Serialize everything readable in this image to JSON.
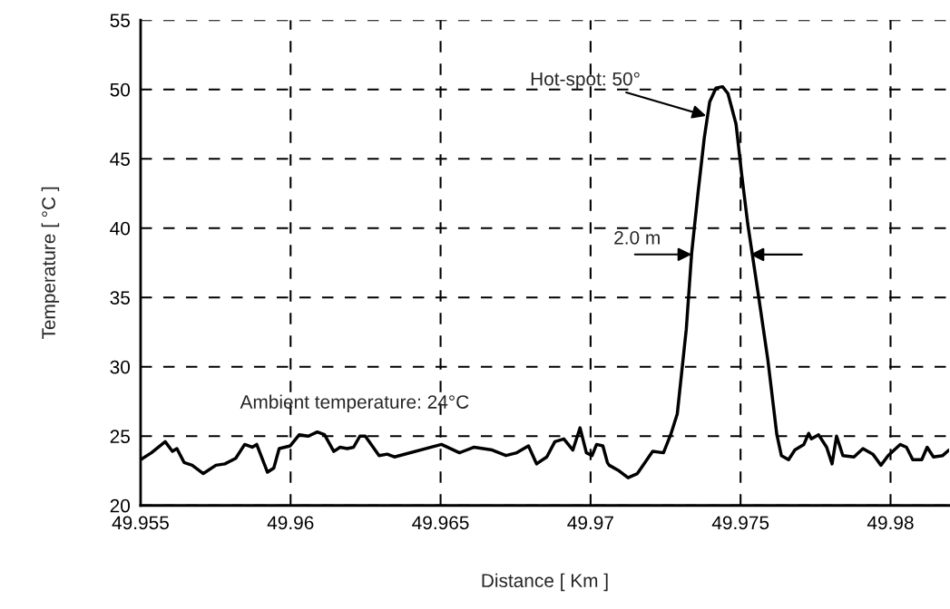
{
  "chart_data": {
    "type": "line",
    "xlabel": "Distance [ Km ]",
    "ylabel": "Temperature [ °C ]",
    "x": [
      49.955,
      49.95536,
      49.95582,
      49.95606,
      49.95621,
      49.95645,
      49.95672,
      49.95709,
      49.95751,
      49.95781,
      49.95817,
      49.95847,
      49.95872,
      49.95887,
      49.95923,
      49.95944,
      49.95962,
      49.95999,
      49.96029,
      49.96059,
      49.96089,
      49.96113,
      49.96144,
      49.96165,
      49.96189,
      49.9621,
      49.96231,
      49.96249,
      49.96295,
      49.96322,
      49.96346,
      49.96503,
      49.96563,
      49.96612,
      49.96672,
      49.96718,
      49.96754,
      49.96793,
      49.9682,
      49.96854,
      49.96881,
      49.96911,
      49.96941,
      49.96965,
      49.96986,
      49.97005,
      49.9702,
      49.97041,
      49.97056,
      49.97062,
      49.97095,
      49.97125,
      49.97156,
      49.97207,
      49.97243,
      49.97267,
      49.97289,
      49.97319,
      49.97337,
      49.97358,
      49.97379,
      49.97397,
      49.97418,
      49.9744,
      49.97458,
      49.97485,
      49.97503,
      49.97524,
      49.9756,
      49.97591,
      49.97621,
      49.97636,
      49.9766,
      49.97681,
      49.97711,
      49.97727,
      49.97736,
      49.9776,
      49.97787,
      49.97805,
      49.9782,
      49.97841,
      49.97878,
      49.97908,
      49.97941,
      49.97968,
      49.97992,
      49.98032,
      49.98053,
      49.98074,
      49.98104,
      49.98122,
      49.98143,
      49.98174,
      49.98195
    ],
    "series": [
      {
        "color": "#000000",
        "values": [
          23.3,
          23.8,
          24.6,
          23.9,
          24.1,
          23.1,
          22.9,
          22.3,
          22.9,
          23.0,
          23.4,
          24.4,
          24.2,
          24.4,
          22.4,
          22.7,
          24.1,
          24.3,
          25.1,
          25.0,
          25.3,
          25.1,
          23.9,
          24.2,
          24.1,
          24.2,
          25.0,
          25.0,
          23.6,
          23.7,
          23.5,
          24.4,
          23.8,
          24.2,
          24.0,
          23.6,
          23.8,
          24.3,
          23.0,
          23.5,
          24.6,
          24.8,
          24.0,
          25.6,
          23.8,
          23.6,
          24.4,
          24.3,
          23.1,
          22.9,
          22.5,
          22.0,
          22.3,
          23.9,
          23.8,
          25.1,
          26.6,
          32.7,
          38.2,
          42.5,
          46.5,
          49.1,
          50.1,
          50.2,
          49.7,
          47.5,
          44.0,
          40.3,
          35.1,
          30.5,
          25.1,
          23.6,
          23.3,
          24.0,
          24.4,
          25.2,
          24.8,
          25.1,
          24.2,
          23.0,
          25.0,
          23.6,
          23.5,
          24.1,
          23.7,
          22.9,
          23.6,
          24.4,
          24.2,
          23.3,
          23.3,
          24.2,
          23.5,
          23.6,
          24.0
        ]
      }
    ],
    "xlim": [
      49.955,
      49.98195
    ],
    "ylim": [
      20,
      55
    ],
    "xticks": [
      49.955,
      49.96,
      49.965,
      49.97,
      49.975,
      49.98
    ],
    "yticks": [
      20,
      25,
      30,
      35,
      40,
      45,
      50,
      55
    ],
    "grid": true,
    "line_style": "solid",
    "annotations": [
      {
        "text": "Hot-spot: 50°",
        "x": 49.97385,
        "y": 48.1
      },
      {
        "text": "2.0 m",
        "x": 49.97337,
        "y": 38.1
      },
      "Ambient temperature: 24°C"
    ]
  }
}
